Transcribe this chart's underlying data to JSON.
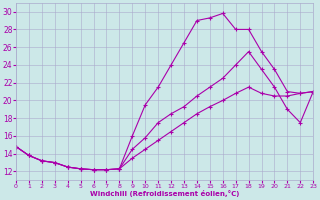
{
  "xlabel": "Windchill (Refroidissement éolien,°C)",
  "xlim": [
    0,
    23
  ],
  "ylim": [
    11,
    31
  ],
  "yticks": [
    12,
    14,
    16,
    18,
    20,
    22,
    24,
    26,
    28,
    30
  ],
  "xticks": [
    0,
    1,
    2,
    3,
    4,
    5,
    6,
    7,
    8,
    9,
    10,
    11,
    12,
    13,
    14,
    15,
    16,
    17,
    18,
    19,
    20,
    21,
    22,
    23
  ],
  "bg_color": "#cce8e8",
  "line_color": "#aa00aa",
  "grid_color": "#aaaacc",
  "line1_x": [
    0,
    1,
    2,
    3,
    4,
    5,
    6,
    7,
    8,
    9,
    10,
    11,
    12,
    13,
    14,
    15,
    16,
    17,
    18,
    19,
    20,
    21,
    22,
    23
  ],
  "line1_y": [
    14.8,
    13.8,
    13.2,
    13.0,
    12.5,
    12.3,
    12.2,
    12.2,
    12.3,
    16.0,
    19.5,
    21.5,
    24.0,
    26.5,
    29.0,
    29.3,
    29.8,
    28.0,
    28.0,
    25.5,
    23.5,
    21.0,
    20.8,
    21.0
  ],
  "line2_x": [
    0,
    1,
    2,
    3,
    4,
    5,
    6,
    7,
    8,
    9,
    10,
    11,
    12,
    13,
    14,
    15,
    16,
    17,
    18,
    19,
    20,
    21,
    22,
    23
  ],
  "line2_y": [
    14.8,
    13.8,
    13.2,
    13.0,
    12.5,
    12.3,
    12.2,
    12.2,
    12.3,
    14.5,
    15.8,
    17.5,
    18.5,
    19.3,
    20.5,
    21.5,
    22.5,
    24.0,
    25.5,
    23.5,
    21.5,
    19.0,
    17.5,
    21.0
  ],
  "line3_x": [
    0,
    1,
    2,
    3,
    4,
    5,
    6,
    7,
    8,
    9,
    10,
    11,
    12,
    13,
    14,
    15,
    16,
    17,
    18,
    19,
    20,
    21,
    22,
    23
  ],
  "line3_y": [
    14.8,
    13.8,
    13.2,
    13.0,
    12.5,
    12.3,
    12.2,
    12.2,
    12.3,
    13.5,
    14.5,
    15.5,
    16.5,
    17.5,
    18.5,
    19.3,
    20.0,
    20.8,
    21.5,
    20.8,
    20.5,
    20.5,
    20.8,
    21.0
  ]
}
